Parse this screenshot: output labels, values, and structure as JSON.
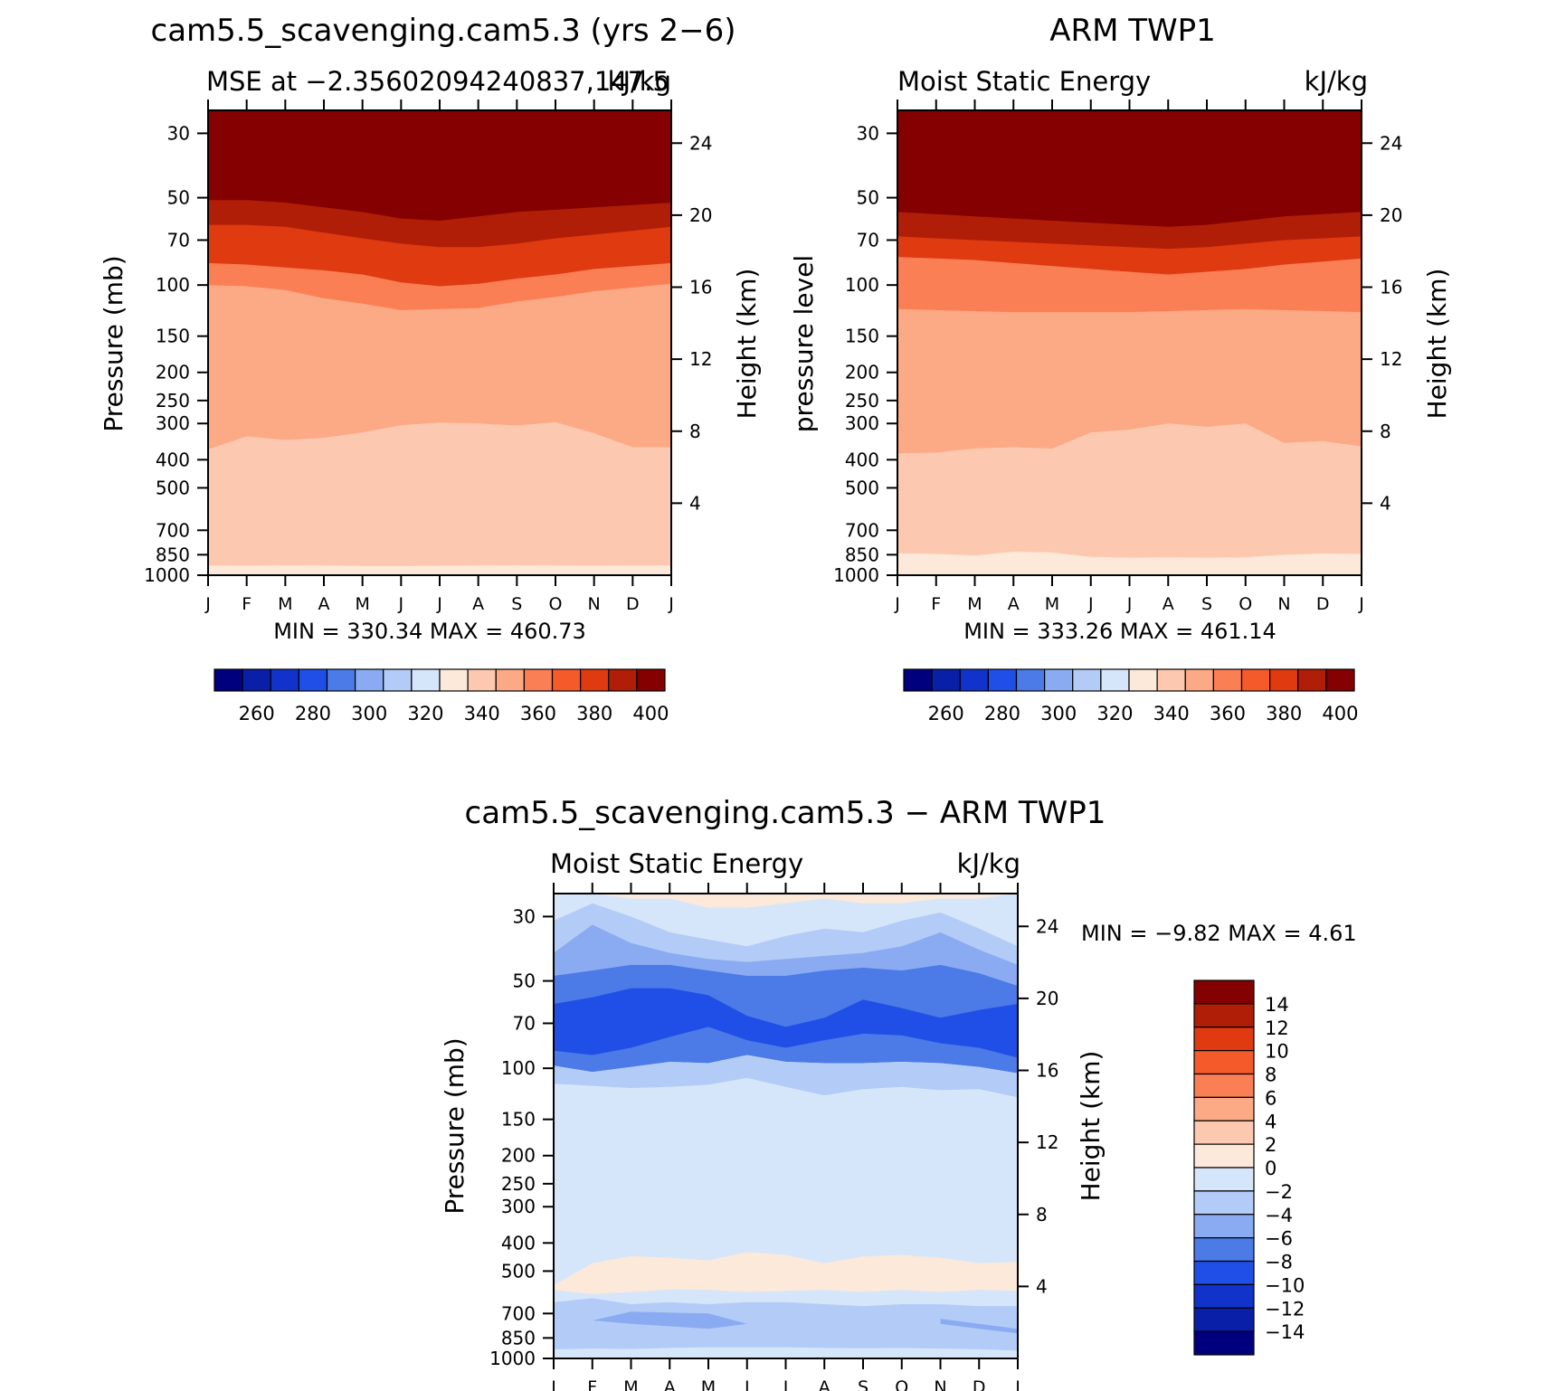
{
  "chart_data": [
    {
      "type": "heatmap",
      "title": "cam5.5_scavenging.cam5.3 (yrs 2−6)",
      "subtitle_left": "MSE at −2.35602094240837,147.5",
      "subtitle_right": "kJ/kg",
      "ylabel": "Pressure (mb)",
      "ylabel_right": "Height (km)",
      "min_max": "MIN = 330.34 MAX = 460.73",
      "x": [
        "J",
        "F",
        "M",
        "A",
        "M",
        "J",
        "J",
        "A",
        "S",
        "O",
        "N",
        "D",
        "J"
      ],
      "y_ticks": [
        30,
        50,
        70,
        100,
        150,
        200,
        250,
        300,
        400,
        500,
        700,
        850,
        1000
      ],
      "height_ticks": [
        24,
        20,
        16,
        12,
        8,
        4
      ],
      "ylim": [
        1000,
        25
      ],
      "y_scale": "log",
      "contour_levels": [
        400,
        380,
        360,
        340
      ],
      "contour_pressure_mb": [
        [
          51,
          51,
          52,
          54,
          56,
          59,
          60,
          58,
          56,
          55,
          54,
          53,
          52
        ],
        [
          62,
          62,
          63,
          66,
          69,
          72,
          74,
          74,
          72,
          69,
          67,
          65,
          63
        ],
        [
          84,
          85,
          87,
          89,
          92,
          98,
          101,
          99,
          95,
          92,
          88,
          86,
          84
        ],
        [
          100,
          101,
          104,
          111,
          116,
          122,
          121,
          120,
          114,
          110,
          105,
          102,
          99
        ],
        [
          368,
          332,
          342,
          336,
          322,
          304,
          298,
          300,
          305,
          297,
          324,
          362,
          362
        ],
        [
          926,
          928,
          924,
          926,
          930,
          930,
          928,
          926,
          924,
          926,
          928,
          926,
          926
        ]
      ],
      "colorbar": {
        "labels": [
          "260",
          "280",
          "300",
          "320",
          "340",
          "360",
          "380",
          "400"
        ],
        "colors": [
          "#00007f",
          "#0a1fa8",
          "#1133cc",
          "#1f4fe6",
          "#4c7ae6",
          "#8aabf2",
          "#b3ccf7",
          "#d6e6fa",
          "#fde9d9",
          "#fcc9b0",
          "#fca985",
          "#fb7f55",
          "#f55a2a",
          "#df3a10",
          "#b11e07",
          "#850000"
        ]
      }
    },
    {
      "type": "heatmap",
      "title": "ARM TWP1",
      "subtitle_left": "Moist Static Energy",
      "subtitle_right": "kJ/kg",
      "ylabel": "pressure level",
      "ylabel_right": "Height (km)",
      "min_max": "MIN = 333.26 MAX = 461.14",
      "x": [
        "J",
        "F",
        "M",
        "A",
        "M",
        "J",
        "J",
        "A",
        "S",
        "O",
        "N",
        "D",
        "J"
      ],
      "y_ticks": [
        30,
        50,
        70,
        100,
        150,
        200,
        250,
        300,
        400,
        500,
        700,
        850,
        1000
      ],
      "height_ticks": [
        24,
        20,
        16,
        12,
        8,
        4
      ],
      "ylim": [
        1000,
        25
      ],
      "y_scale": "log",
      "contour_levels": [
        400,
        380,
        360,
        340
      ],
      "contour_pressure_mb": [
        [
          56,
          57,
          58,
          59,
          60,
          61,
          62,
          63,
          62,
          60,
          58,
          57,
          56
        ],
        [
          68,
          69,
          70,
          71,
          72,
          73,
          74,
          75,
          74,
          72,
          70,
          69,
          68
        ],
        [
          80,
          81,
          82,
          84,
          86,
          88,
          90,
          92,
          90,
          88,
          85,
          83,
          81
        ],
        [
          121,
          122,
          123,
          124,
          124,
          124,
          124,
          123,
          122,
          121,
          122,
          123,
          124
        ],
        [
          380,
          378,
          366,
          362,
          366,
          322,
          315,
          300,
          308,
          300,
          350,
          345,
          360
        ],
        [
          840,
          845,
          855,
          830,
          835,
          865,
          870,
          868,
          870,
          868,
          850,
          842,
          845
        ]
      ],
      "colorbar": {
        "labels": [
          "260",
          "280",
          "300",
          "320",
          "340",
          "360",
          "380",
          "400"
        ],
        "colors": [
          "#00007f",
          "#0a1fa8",
          "#1133cc",
          "#1f4fe6",
          "#4c7ae6",
          "#8aabf2",
          "#b3ccf7",
          "#d6e6fa",
          "#fde9d9",
          "#fcc9b0",
          "#fca985",
          "#fb7f55",
          "#f55a2a",
          "#df3a10",
          "#b11e07",
          "#850000"
        ]
      }
    },
    {
      "type": "heatmap",
      "title": "cam5.5_scavenging.cam5.3 − ARM TWP1",
      "subtitle_left": "Moist Static Energy",
      "subtitle_right": "kJ/kg",
      "ylabel": "Pressure (mb)",
      "ylabel_right": "Height (km)",
      "min_max": "MIN = −9.82 MAX = 4.61",
      "x": [
        "J",
        "F",
        "M",
        "A",
        "M",
        "J",
        "J",
        "A",
        "S",
        "O",
        "N",
        "D",
        "J"
      ],
      "y_ticks": [
        30,
        50,
        70,
        100,
        150,
        200,
        250,
        300,
        400,
        500,
        700,
        850,
        1000
      ],
      "height_ticks": [
        24,
        20,
        16,
        12,
        8,
        4
      ],
      "ylim": [
        1000,
        25
      ],
      "y_scale": "log",
      "bands": [
        {
          "level": "0 to 2",
          "top_mb": [
            25,
            25,
            25,
            25,
            25,
            25,
            25,
            25,
            25,
            25,
            25,
            25,
            25
          ],
          "bottom_mb": [
            25,
            25,
            26,
            26,
            28,
            28,
            27,
            26,
            27,
            27,
            26,
            26,
            25
          ]
        },
        {
          "level": "−2 to 0",
          "top_mb": [
            25,
            25,
            26,
            26,
            28,
            28,
            27,
            26,
            27,
            27,
            26,
            26,
            25
          ],
          "bottom_mb": [
            31,
            27,
            30,
            34,
            36,
            38,
            35,
            33,
            34,
            31,
            29,
            33,
            38
          ]
        },
        {
          "level": "−4 to −2",
          "top_mb": [
            31,
            27,
            30,
            34,
            36,
            38,
            35,
            33,
            34,
            31,
            29,
            33,
            38
          ],
          "bottom_mb": [
            40,
            32,
            37,
            40,
            42,
            43,
            42,
            41,
            40,
            38,
            34,
            39,
            44
          ]
        },
        {
          "level": "−6 to −4",
          "top_mb": [
            40,
            32,
            37,
            40,
            42,
            43,
            42,
            41,
            40,
            38,
            34,
            39,
            44
          ],
          "bottom_mb": [
            48,
            46,
            44,
            44,
            46,
            48,
            48,
            46,
            45,
            46,
            44,
            47,
            52
          ]
        },
        {
          "level": "−8 to −6",
          "top_mb": [
            48,
            46,
            44,
            44,
            46,
            48,
            48,
            46,
            45,
            46,
            44,
            47,
            52
          ],
          "bottom_mb": [
            98,
            103,
            99,
            95,
            96,
            90,
            95,
            96,
            96,
            95,
            96,
            99,
            104
          ]
        },
        {
          "level": "−10 to −8",
          "top_mb": [
            60,
            57,
            53,
            53,
            56,
            66,
            72,
            67,
            58,
            62,
            67,
            63,
            60
          ],
          "bottom_mb": [
            87,
            90,
            85,
            78,
            72,
            80,
            85,
            80,
            76,
            77,
            82,
            85,
            92
          ]
        },
        {
          "level": "−4 to −2",
          "top_mb": [
            98,
            103,
            99,
            95,
            96,
            90,
            95,
            96,
            96,
            95,
            96,
            99,
            104
          ],
          "bottom_mb": [
            113,
            115,
            117,
            116,
            114,
            108,
            116,
            124,
            118,
            116,
            119,
            118,
            126
          ]
        }
      ],
      "warm_band_mb": {
        "top": [
          560,
          470,
          444,
          450,
          460,
          430,
          440,
          470,
          445,
          440,
          450,
          470,
          465
        ],
        "bottom": [
          580,
          600,
          590,
          578,
          580,
          590,
          585,
          580,
          590,
          580,
          590,
          580,
          585
        ]
      },
      "lower_band_mb": {
        "top": [
          640,
          620,
          650,
          640,
          650,
          640,
          640,
          650,
          660,
          650,
          650,
          660,
          660
        ],
        "bottom": [
          930,
          925,
          928,
          920,
          915,
          915,
          915,
          920,
          922,
          920,
          925,
          930,
          940
        ]
      },
      "colorbar": {
        "labels": [
          "14",
          "12",
          "10",
          "8",
          "6",
          "4",
          "2",
          "0",
          "−2",
          "−4",
          "−6",
          "−8",
          "−10",
          "−12",
          "−14"
        ],
        "colors": [
          "#850000",
          "#b11e07",
          "#df3a10",
          "#f55a2a",
          "#fb7f55",
          "#fca985",
          "#fcc9b0",
          "#fde9d9",
          "#d6e6fa",
          "#b3ccf7",
          "#8aabf2",
          "#4c7ae6",
          "#1f4fe6",
          "#1133cc",
          "#0a1fa8",
          "#00007f"
        ]
      }
    }
  ]
}
